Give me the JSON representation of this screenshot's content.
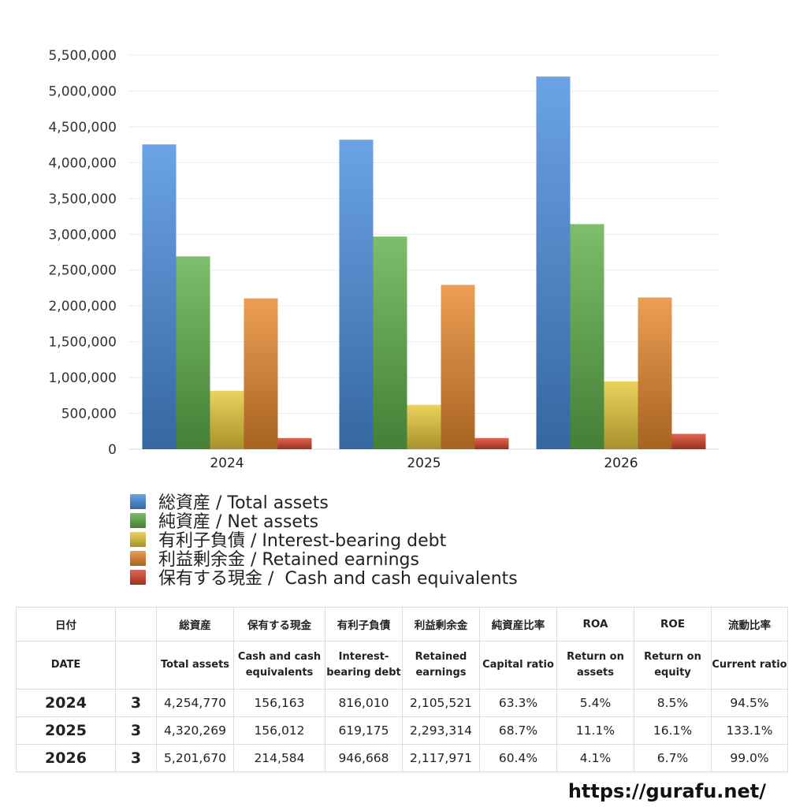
{
  "chart_data": {
    "type": "bar",
    "categories": [
      "2024",
      "2025",
      "2026"
    ],
    "series": [
      {
        "name": "総資産 / Total assets",
        "color": "#4a8fe0",
        "values": [
          4254770,
          4320269,
          5201670
        ]
      },
      {
        "name": "純資産 / Net assets",
        "color": "#5fb04a",
        "values": [
          2691000,
          2968000,
          3142000
        ]
      },
      {
        "name": "有利子負債 / Interest-bearing debt",
        "color": "#e8c93c",
        "values": [
          816010,
          619175,
          946668
        ]
      },
      {
        "name": "利益剰余金 / Retained earnings",
        "color": "#e8892e",
        "values": [
          2105521,
          2293314,
          2117971
        ]
      },
      {
        "name": "保有する現金 /  Cash and cash equivalents",
        "color": "#d9442b",
        "values": [
          156163,
          156012,
          214584
        ]
      }
    ],
    "yticks": [
      "0",
      "500,000",
      "1,000,000",
      "1,500,000",
      "2,000,000",
      "2,500,000",
      "3,000,000",
      "3,500,000",
      "4,000,000",
      "4,500,000",
      "5,000,000",
      "5,500,000"
    ],
    "ylim": [
      0,
      5500000
    ],
    "grid": true,
    "legend_position": "bottom"
  },
  "table": {
    "header_ja": {
      "date": "日付",
      "total_assets": "総資産",
      "cash": "保有する現金",
      "debt": "有利子負債",
      "retained": "利益剰余金",
      "capital_ratio": "純資産比率",
      "roa": "ROA",
      "roe": "ROE",
      "current_ratio": "流動比率"
    },
    "header_en": {
      "date": "DATE",
      "total_assets": "Total assets",
      "cash": "Cash and cash equivalents",
      "debt": "Interest-bearing debt",
      "retained": "Retained earnings",
      "capital_ratio": "Capital ratio",
      "roa": "Return on assets",
      "roe": "Return on equity",
      "current_ratio": "Current ratio"
    },
    "rows": [
      {
        "year": "2024",
        "month": "3",
        "total_assets": "4,254,770",
        "cash": "156,163",
        "debt": "816,010",
        "retained": "2,105,521",
        "capital_ratio": "63.3%",
        "roa": "5.4%",
        "roe": "8.5%",
        "current_ratio": "94.5%"
      },
      {
        "year": "2025",
        "month": "3",
        "total_assets": "4,320,269",
        "cash": "156,012",
        "debt": "619,175",
        "retained": "2,293,314",
        "capital_ratio": "68.7%",
        "roa": "11.1%",
        "roe": "16.1%",
        "current_ratio": "133.1%"
      },
      {
        "year": "2026",
        "month": "3",
        "total_assets": "5,201,670",
        "cash": "214,584",
        "debt": "946,668",
        "retained": "2,117,971",
        "capital_ratio": "60.4%",
        "roa": "4.1%",
        "roe": "6.7%",
        "current_ratio": "99.0%"
      }
    ]
  },
  "watermark": "https://gurafu.net/"
}
